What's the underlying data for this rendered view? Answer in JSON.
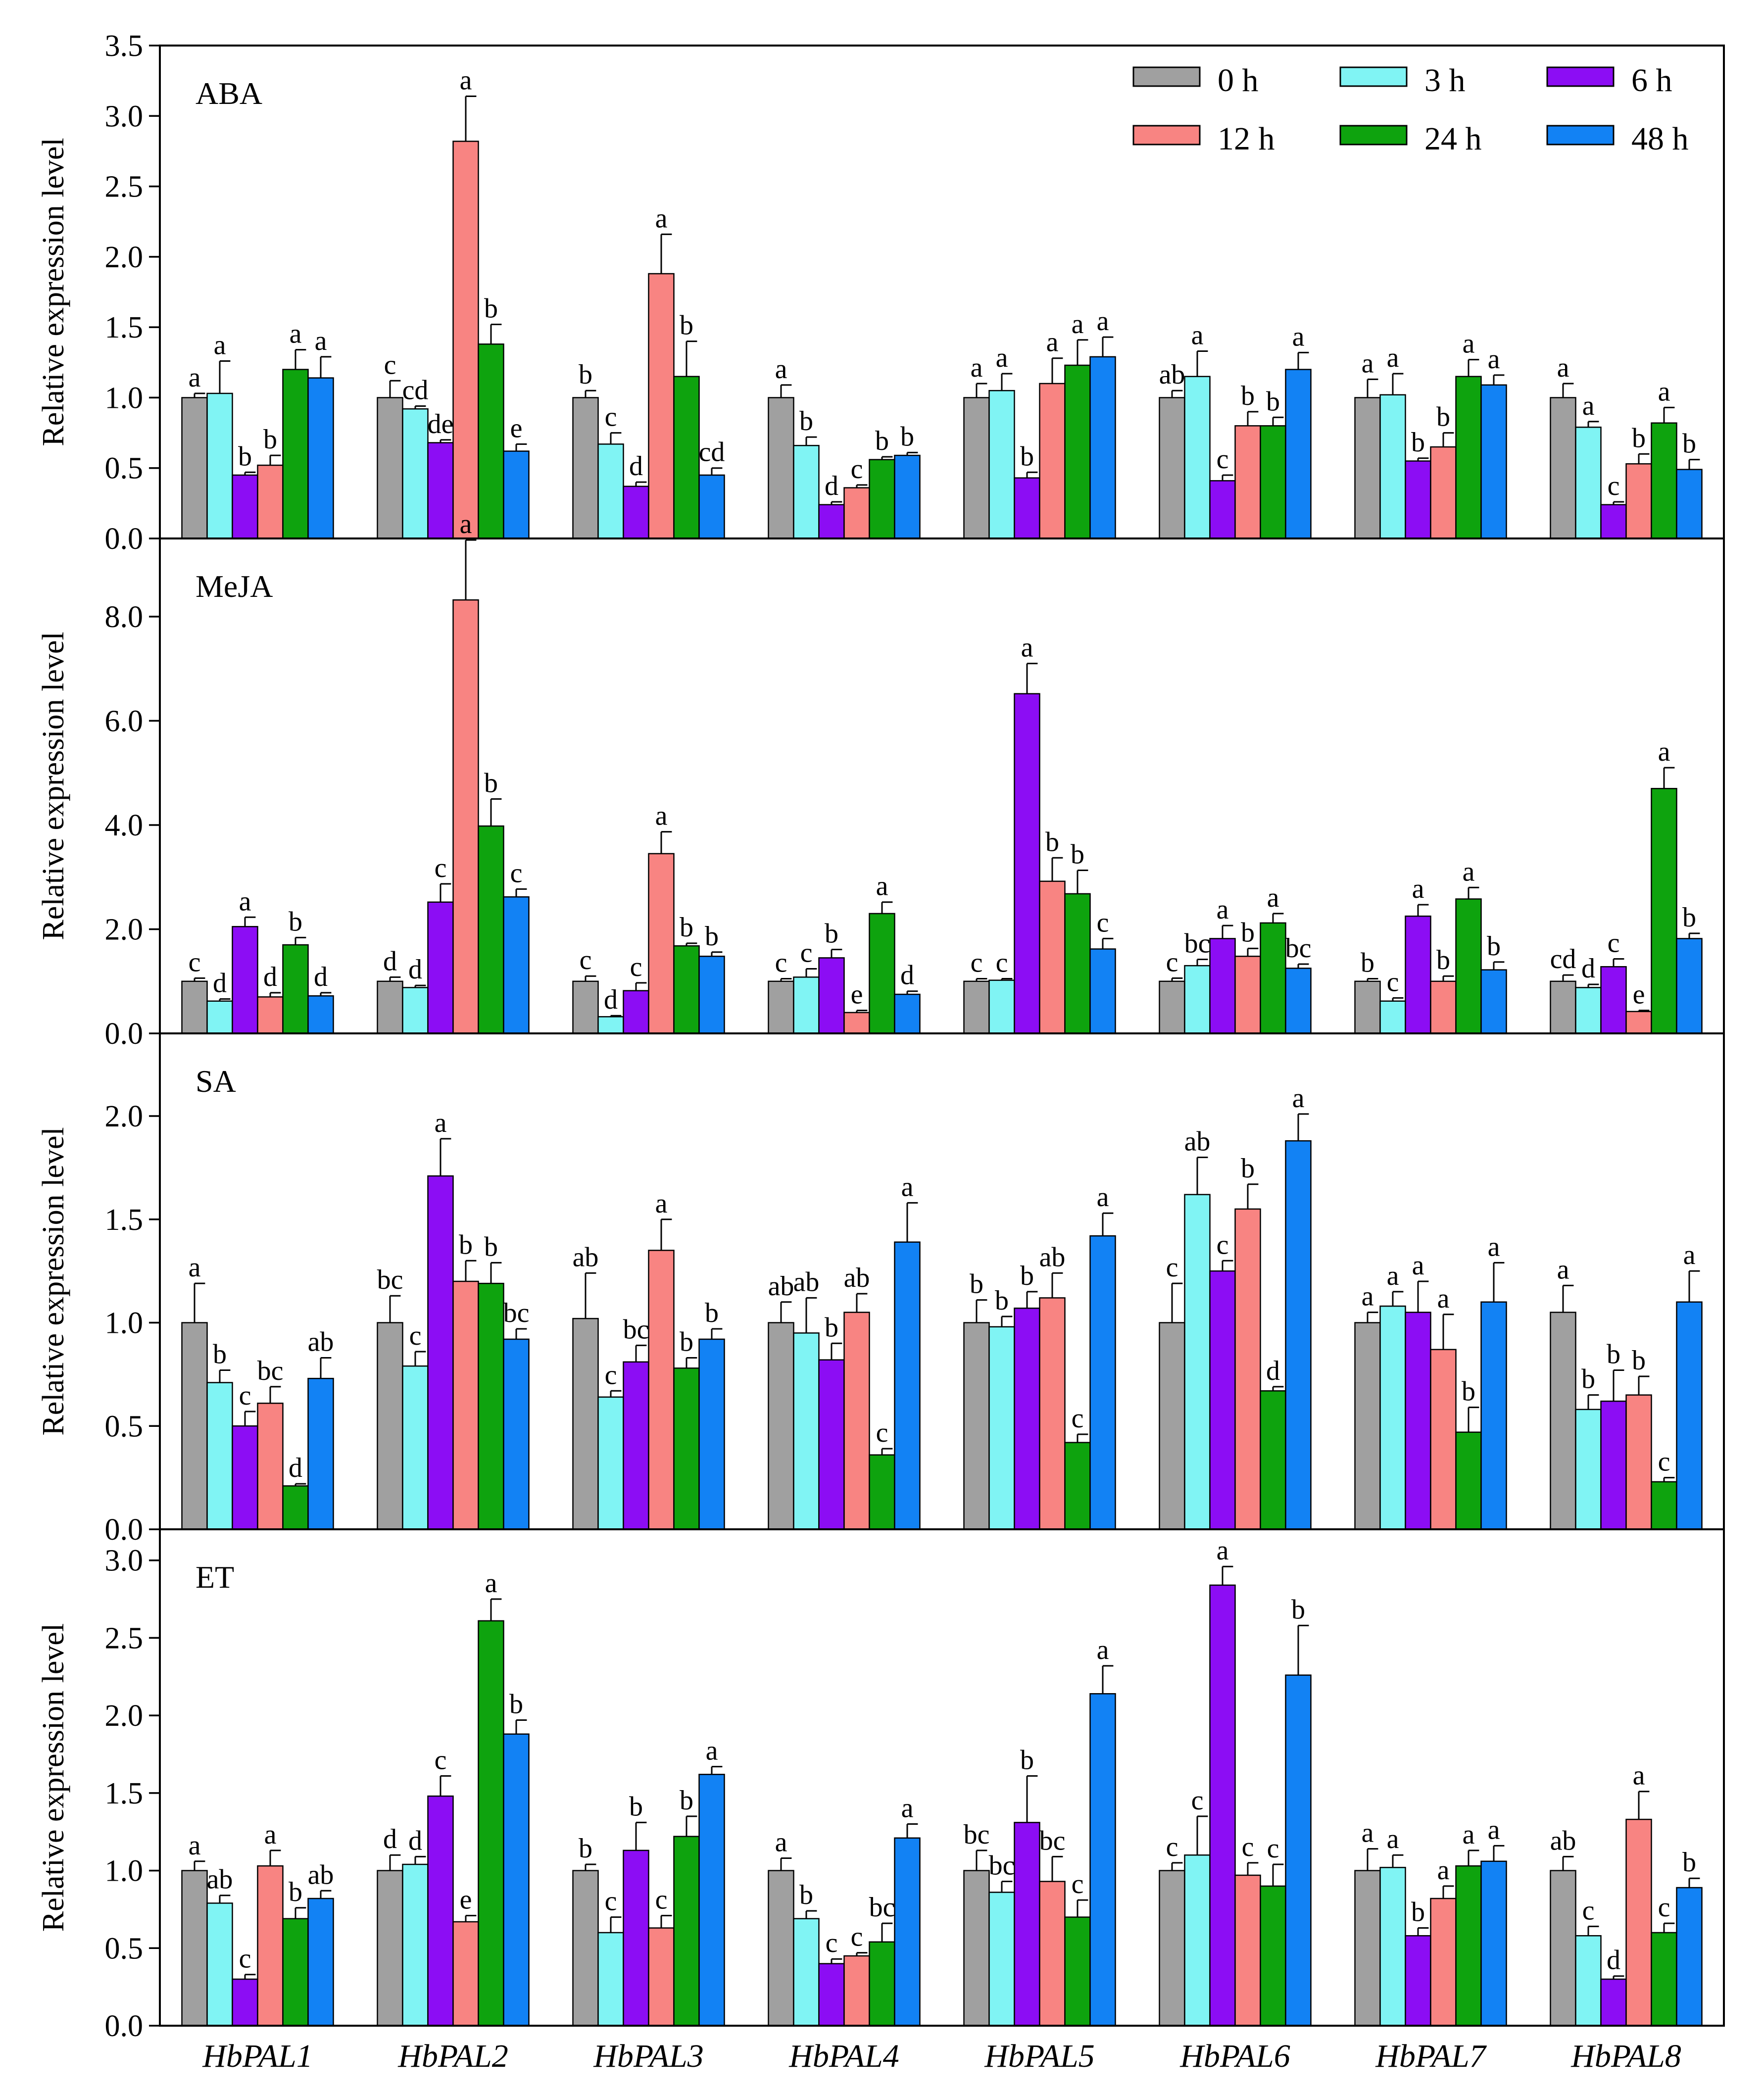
{
  "legend": {
    "entries": [
      {
        "label": "0 h",
        "color": "#a0a0a0"
      },
      {
        "label": "3 h",
        "color": "#80f4f4"
      },
      {
        "label": "6 h",
        "color": "#8c0df4"
      },
      {
        "label": "12 h",
        "color": "#f88482"
      },
      {
        "label": "24 h",
        "color": "#0ea30e"
      },
      {
        "label": "48 h",
        "color": "#1282f4"
      }
    ]
  },
  "chart_data": {
    "type": "bar",
    "categories": [
      "HbPAL1",
      "HbPAL2",
      "HbPAL3",
      "HbPAL4",
      "HbPAL5",
      "HbPAL6",
      "HbPAL7",
      "HbPAL8"
    ],
    "series_names": [
      "0 h",
      "3 h",
      "6 h",
      "12 h",
      "24 h",
      "48 h"
    ],
    "ylabel": "Relative expression level",
    "legend_position": "top-right",
    "grid": false,
    "panels": [
      {
        "title": "ABA",
        "ylim": [
          0,
          3.5
        ],
        "yticks": [
          "0.0",
          "0.5",
          "1.0",
          "1.5",
          "2.0",
          "2.5",
          "3.0",
          "3.5"
        ],
        "yticks_values": [
          0,
          0.5,
          1.0,
          1.5,
          2.0,
          2.5,
          3.0,
          3.5
        ],
        "values": [
          [
            1.0,
            1.03,
            0.45,
            0.52,
            1.2,
            1.14
          ],
          [
            1.0,
            0.92,
            0.68,
            2.82,
            1.38,
            0.62
          ],
          [
            1.0,
            0.67,
            0.37,
            1.88,
            1.15,
            0.45
          ],
          [
            1.0,
            0.66,
            0.24,
            0.36,
            0.56,
            0.59
          ],
          [
            1.0,
            1.05,
            0.43,
            1.1,
            1.23,
            1.29
          ],
          [
            1.0,
            1.15,
            0.41,
            0.8,
            0.8,
            1.2
          ],
          [
            1.0,
            1.02,
            0.55,
            0.65,
            1.15,
            1.09
          ],
          [
            1.0,
            0.79,
            0.24,
            0.53,
            0.82,
            0.49
          ]
        ],
        "errors": [
          [
            0.03,
            0.23,
            0.02,
            0.07,
            0.14,
            0.15
          ],
          [
            0.12,
            0.02,
            0.02,
            0.32,
            0.14,
            0.05
          ],
          [
            0.05,
            0.08,
            0.03,
            0.28,
            0.25,
            0.05
          ],
          [
            0.09,
            0.06,
            0.02,
            0.02,
            0.02,
            0.02
          ],
          [
            0.1,
            0.12,
            0.04,
            0.18,
            0.18,
            0.14
          ],
          [
            0.05,
            0.18,
            0.04,
            0.1,
            0.06,
            0.12
          ],
          [
            0.13,
            0.15,
            0.02,
            0.1,
            0.12,
            0.07
          ],
          [
            0.1,
            0.04,
            0.02,
            0.07,
            0.11,
            0.07
          ]
        ],
        "letters": [
          [
            "a",
            "a",
            "b",
            "b",
            "a",
            "a"
          ],
          [
            "c",
            "cd",
            "de",
            "a",
            "b",
            "e"
          ],
          [
            "b",
            "c",
            "d",
            "a",
            "b",
            "cd"
          ],
          [
            "a",
            "b",
            "d",
            "c",
            "b",
            "b"
          ],
          [
            "a",
            "a",
            "b",
            "a",
            "a",
            "a"
          ],
          [
            "ab",
            "a",
            "c",
            "b",
            "b",
            "a"
          ],
          [
            "a",
            "a",
            "b",
            "b",
            "a",
            "a"
          ],
          [
            "a",
            "a",
            "c",
            "b",
            "a",
            "b"
          ]
        ]
      },
      {
        "title": "MeJA",
        "ylim": [
          0,
          9.5
        ],
        "yticks": [
          "0.0",
          "2.0",
          "4.0",
          "6.0",
          "8.0"
        ],
        "yticks_values": [
          0,
          2.0,
          4.0,
          6.0,
          8.0
        ],
        "values": [
          [
            1.0,
            0.62,
            2.05,
            0.7,
            1.7,
            0.72
          ],
          [
            1.0,
            0.88,
            2.52,
            8.32,
            3.98,
            2.62
          ],
          [
            1.0,
            0.32,
            0.82,
            3.45,
            1.68,
            1.48
          ],
          [
            1.0,
            1.08,
            1.45,
            0.4,
            2.3,
            0.75
          ],
          [
            1.0,
            1.02,
            6.52,
            2.92,
            2.68,
            1.62
          ],
          [
            1.0,
            1.3,
            1.82,
            1.48,
            2.12,
            1.25
          ],
          [
            1.0,
            0.62,
            2.25,
            1.0,
            2.58,
            1.22
          ],
          [
            1.0,
            0.88,
            1.28,
            0.42,
            4.7,
            1.82
          ]
        ],
        "errors": [
          [
            0.06,
            0.04,
            0.18,
            0.08,
            0.14,
            0.06
          ],
          [
            0.08,
            0.04,
            0.35,
            1.15,
            0.52,
            0.15
          ],
          [
            0.1,
            0.02,
            0.15,
            0.42,
            0.05,
            0.08
          ],
          [
            0.05,
            0.16,
            0.16,
            0.04,
            0.22,
            0.06
          ],
          [
            0.05,
            0.03,
            0.58,
            0.45,
            0.45,
            0.2
          ],
          [
            0.06,
            0.12,
            0.25,
            0.15,
            0.18,
            0.08
          ],
          [
            0.05,
            0.06,
            0.22,
            0.1,
            0.22,
            0.15
          ],
          [
            0.12,
            0.06,
            0.15,
            0.02,
            0.4,
            0.1
          ]
        ],
        "letters": [
          [
            "c",
            "d",
            "a",
            "d",
            "b",
            "d"
          ],
          [
            "d",
            "d",
            "c",
            "a",
            "b",
            "c"
          ],
          [
            "c",
            "d",
            "c",
            "a",
            "b",
            "b"
          ],
          [
            "c",
            "c",
            "b",
            "e",
            "a",
            "d"
          ],
          [
            "c",
            "c",
            "a",
            "b",
            "b",
            "c"
          ],
          [
            "c",
            "bc",
            "a",
            "b",
            "a",
            "bc"
          ],
          [
            "b",
            "c",
            "a",
            "b",
            "a",
            "b"
          ],
          [
            "cd",
            "d",
            "c",
            "e",
            "a",
            "b"
          ]
        ]
      },
      {
        "title": "SA",
        "ylim": [
          0,
          2.4
        ],
        "yticks": [
          "0.0",
          "0.5",
          "1.0",
          "1.5",
          "2.0"
        ],
        "yticks_values": [
          0,
          0.5,
          1.0,
          1.5,
          2.0
        ],
        "values": [
          [
            1.0,
            0.71,
            0.5,
            0.61,
            0.21,
            0.73
          ],
          [
            1.0,
            0.79,
            1.71,
            1.2,
            1.19,
            0.92
          ],
          [
            1.02,
            0.64,
            0.81,
            1.35,
            0.78,
            0.92
          ],
          [
            1.0,
            0.95,
            0.82,
            1.05,
            0.36,
            1.39
          ],
          [
            1.0,
            0.98,
            1.07,
            1.12,
            0.42,
            1.42
          ],
          [
            1.0,
            1.62,
            1.25,
            1.55,
            0.67,
            1.88
          ]
        ],
        "errors": [
          [
            0.19,
            0.06,
            0.07,
            0.08,
            0.01,
            0.1
          ],
          [
            0.13,
            0.07,
            0.18,
            0.1,
            0.1,
            0.05
          ],
          [
            0.22,
            0.03,
            0.08,
            0.15,
            0.05,
            0.05
          ],
          [
            0.1,
            0.17,
            0.08,
            0.09,
            0.03,
            0.19
          ],
          [
            0.11,
            0.05,
            0.08,
            0.12,
            0.04,
            0.11
          ],
          [
            0.19,
            0.18,
            0.05,
            0.12,
            0.02,
            0.13
          ]
        ],
        "values_more": [
          [
            1.0,
            1.08,
            1.05,
            0.87,
            0.47,
            1.1
          ],
          [
            1.05,
            0.58,
            0.62,
            0.65,
            0.23,
            1.1
          ]
        ],
        "errors_more": [
          [
            0.05,
            0.07,
            0.15,
            0.17,
            0.12,
            0.19
          ],
          [
            0.13,
            0.07,
            0.15,
            0.09,
            0.02,
            0.15
          ]
        ],
        "letters": [
          [
            "a",
            "b",
            "c",
            "bc",
            "d",
            "ab"
          ],
          [
            "bc",
            "c",
            "a",
            "b",
            "b",
            "bc"
          ],
          [
            "ab",
            "c",
            "bc",
            "a",
            "b",
            "b"
          ],
          [
            "ab",
            "ab",
            "b",
            "ab",
            "c",
            "a"
          ],
          [
            "b",
            "b",
            "b",
            "ab",
            "c",
            "a"
          ],
          [
            "c",
            "ab",
            "c",
            "b",
            "d",
            "a"
          ],
          [
            "a",
            "a",
            "a",
            "a",
            "b",
            "a"
          ],
          [
            "a",
            "b",
            "b",
            "b",
            "c",
            "a"
          ]
        ]
      },
      {
        "title": "ET",
        "ylim": [
          0,
          3.2
        ],
        "yticks": [
          "0.0",
          "0.5",
          "1.0",
          "1.5",
          "2.0",
          "2.5",
          "3.0"
        ],
        "yticks_values": [
          0,
          0.5,
          1.0,
          1.5,
          2.0,
          2.5,
          3.0
        ],
        "values": [
          [
            1.0,
            0.79,
            0.3,
            1.03,
            0.69,
            0.82
          ],
          [
            1.0,
            1.04,
            1.48,
            0.67,
            2.61,
            1.88
          ],
          [
            1.0,
            0.6,
            1.13,
            0.63,
            1.22,
            1.62
          ],
          [
            1.0,
            0.69,
            0.4,
            0.45,
            0.54,
            1.21
          ],
          [
            1.0,
            0.86,
            1.31,
            0.93,
            0.7,
            2.14
          ],
          [
            1.0,
            1.1,
            2.84,
            0.97,
            0.9,
            2.26
          ],
          [
            1.0,
            1.02,
            0.58,
            0.82,
            1.03,
            1.06
          ],
          [
            1.0,
            0.58,
            0.3,
            1.33,
            0.6,
            0.89
          ]
        ],
        "errors": [
          [
            0.06,
            0.05,
            0.03,
            0.1,
            0.07,
            0.05
          ],
          [
            0.1,
            0.05,
            0.13,
            0.04,
            0.14,
            0.09
          ],
          [
            0.04,
            0.1,
            0.18,
            0.08,
            0.13,
            0.05
          ],
          [
            0.08,
            0.05,
            0.03,
            0.02,
            0.12,
            0.09
          ],
          [
            0.13,
            0.07,
            0.3,
            0.16,
            0.11,
            0.18
          ],
          [
            0.05,
            0.25,
            0.12,
            0.08,
            0.14,
            0.32
          ],
          [
            0.14,
            0.08,
            0.05,
            0.08,
            0.1,
            0.1
          ],
          [
            0.09,
            0.06,
            0.02,
            0.18,
            0.06,
            0.06
          ]
        ],
        "letters": [
          [
            "a",
            "ab",
            "c",
            "a",
            "b",
            "ab"
          ],
          [
            "d",
            "d",
            "c",
            "e",
            "a",
            "b"
          ],
          [
            "b",
            "c",
            "b",
            "c",
            "b",
            "a"
          ],
          [
            "a",
            "b",
            "c",
            "c",
            "bc",
            "a"
          ],
          [
            "bc",
            "bc",
            "b",
            "bc",
            "c",
            "a"
          ],
          [
            "c",
            "c",
            "a",
            "c",
            "c",
            "b"
          ],
          [
            "a",
            "a",
            "b",
            "a",
            "a",
            "a"
          ],
          [
            "ab",
            "c",
            "d",
            "a",
            "c",
            "b"
          ]
        ]
      }
    ]
  }
}
